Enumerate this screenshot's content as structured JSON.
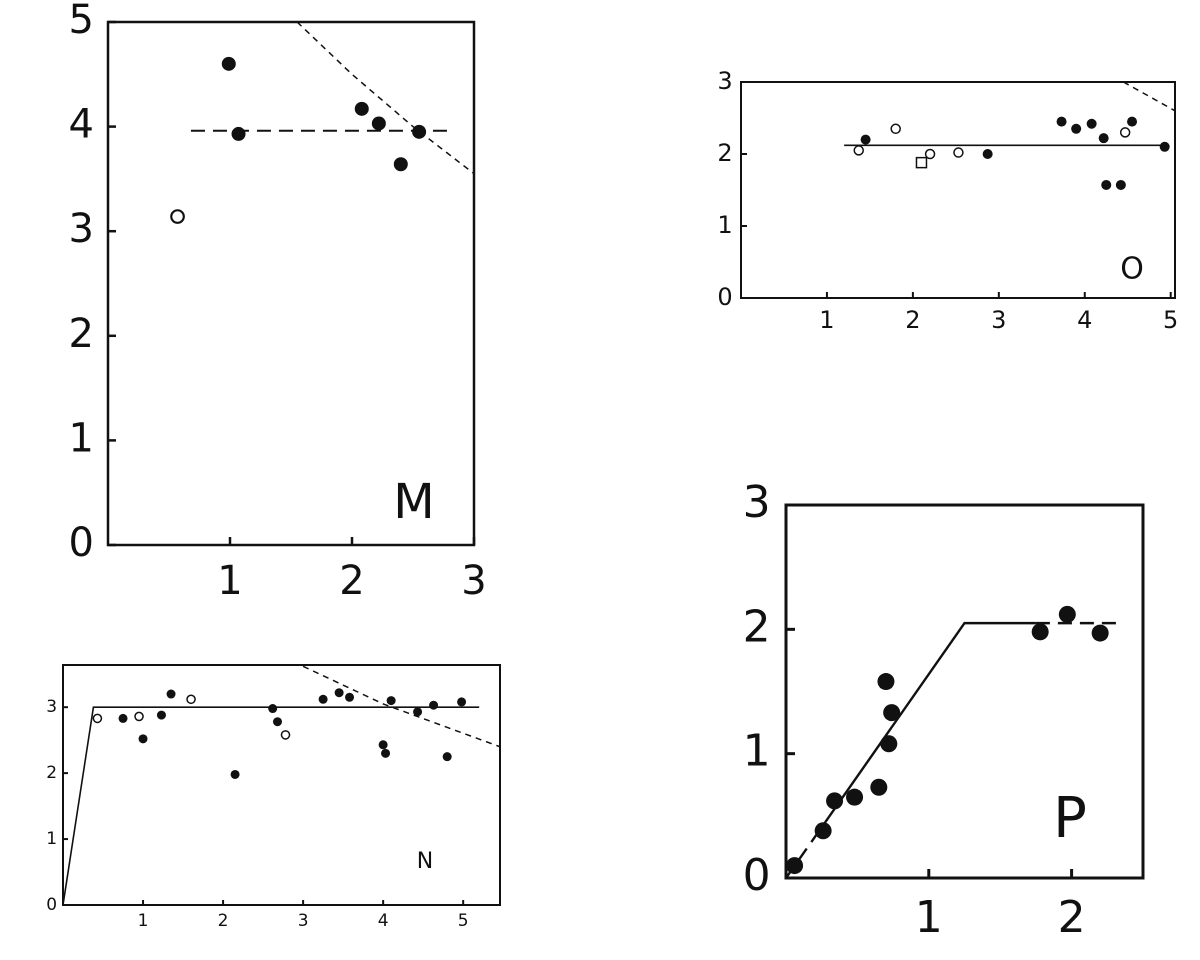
{
  "chart_data": [
    {
      "type": "scatter",
      "label": "M",
      "xlim": [
        0,
        3
      ],
      "ylim": [
        0,
        5
      ],
      "xticks": [
        1,
        2,
        3
      ],
      "yticks": [
        0,
        1,
        2,
        3,
        4,
        5
      ],
      "series": [
        {
          "marker": "filled",
          "color": "#111111",
          "x": [
            0.99,
            1.07,
            2.08,
            2.22,
            2.4,
            2.55
          ],
          "y": [
            4.6,
            3.93,
            4.17,
            4.03,
            3.64,
            3.95
          ]
        },
        {
          "marker": "open",
          "color": "#111111",
          "x": [
            0.57
          ],
          "y": [
            3.14
          ]
        }
      ],
      "lines": [
        {
          "style": "dashed",
          "x": [
            0.68,
            2.8
          ],
          "y": [
            3.96,
            3.96
          ]
        },
        {
          "style": "dotted",
          "x": [
            1.55,
            2.0,
            2.5,
            3.0
          ],
          "y": [
            5.0,
            4.5,
            4.0,
            3.55
          ]
        }
      ]
    },
    {
      "type": "scatter",
      "label": "N",
      "xlim": [
        0,
        5.46
      ],
      "ylim": [
        0,
        3.64
      ],
      "xticks": [
        1,
        2,
        3,
        4,
        5
      ],
      "yticks": [
        0,
        1,
        2,
        3
      ],
      "series": [
        {
          "marker": "filled",
          "color": "#111111",
          "x": [
            0.75,
            1.0,
            1.23,
            1.35,
            2.15,
            2.62,
            2.68,
            3.25,
            3.45,
            3.58,
            4.0,
            4.03,
            4.1,
            4.43,
            4.63,
            4.8,
            4.98
          ],
          "y": [
            2.83,
            2.52,
            2.88,
            3.2,
            1.98,
            2.98,
            2.78,
            3.12,
            3.22,
            3.15,
            2.43,
            2.3,
            3.1,
            2.93,
            3.03,
            2.25,
            3.08
          ]
        },
        {
          "marker": "open",
          "color": "#111111",
          "x": [
            0.43,
            0.95,
            1.6,
            2.78
          ],
          "y": [
            2.83,
            2.86,
            3.12,
            2.58
          ]
        }
      ],
      "lines": [
        {
          "style": "solid",
          "x": [
            0,
            0.38,
            5.2
          ],
          "y": [
            0,
            3.0,
            3.0
          ]
        },
        {
          "style": "dotted",
          "x": [
            3.0,
            4.0,
            5.46
          ],
          "y": [
            3.62,
            3.05,
            2.4
          ]
        }
      ]
    },
    {
      "type": "scatter",
      "label": "O",
      "xlim": [
        0,
        5.05
      ],
      "ylim": [
        0,
        3
      ],
      "xticks": [
        1,
        2,
        3,
        4,
        5
      ],
      "yticks": [
        0,
        1,
        2,
        3
      ],
      "series": [
        {
          "marker": "filled",
          "color": "#111111",
          "x": [
            1.45,
            2.87,
            3.73,
            3.9,
            4.08,
            4.22,
            4.25,
            4.42,
            4.55,
            4.93
          ],
          "y": [
            2.2,
            2.0,
            2.45,
            2.35,
            2.42,
            2.22,
            1.57,
            1.57,
            2.45,
            2.1
          ]
        },
        {
          "marker": "open",
          "color": "#111111",
          "x": [
            1.37,
            1.8,
            2.2,
            2.53,
            4.47
          ],
          "y": [
            2.05,
            2.35,
            2.0,
            2.02,
            2.3
          ]
        },
        {
          "marker": "square",
          "color": "#111111",
          "x": [
            2.1
          ],
          "y": [
            1.88
          ]
        }
      ],
      "lines": [
        {
          "style": "solid",
          "x": [
            1.2,
            4.95
          ],
          "y": [
            2.12,
            2.12
          ]
        },
        {
          "style": "dotted",
          "x": [
            4.45,
            5.05
          ],
          "y": [
            3.0,
            2.6
          ]
        }
      ]
    },
    {
      "type": "scatter",
      "label": "P",
      "xlim": [
        0,
        2.5
      ],
      "ylim": [
        0,
        3
      ],
      "xticks": [
        1,
        2
      ],
      "yticks": [
        0,
        1,
        2,
        3
      ],
      "series": [
        {
          "marker": "filled",
          "color": "#111111",
          "x": [
            0.06,
            0.26,
            0.34,
            0.48,
            0.65,
            0.7,
            0.72,
            0.74,
            1.78,
            1.97,
            2.2
          ],
          "y": [
            0.1,
            0.38,
            0.62,
            0.65,
            0.73,
            1.58,
            1.08,
            1.33,
            1.98,
            2.12,
            1.97
          ]
        }
      ],
      "lines": [
        {
          "style": "dashed",
          "x": [
            0,
            0.3
          ],
          "y": [
            0,
            0.49
          ]
        },
        {
          "style": "solid",
          "x": [
            0.3,
            1.25,
            1.75
          ],
          "y": [
            0.49,
            2.05,
            2.05
          ]
        },
        {
          "style": "dashed",
          "x": [
            1.75,
            2.35
          ],
          "y": [
            2.05,
            2.05
          ]
        }
      ]
    }
  ]
}
